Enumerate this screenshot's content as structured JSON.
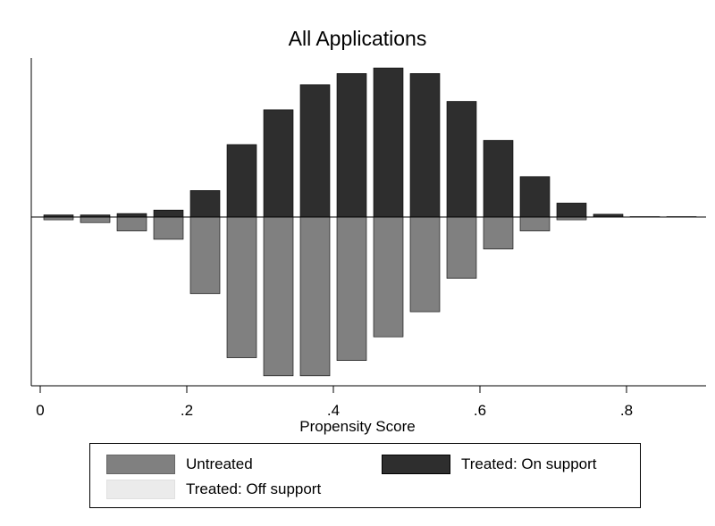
{
  "chart_data": {
    "type": "bar",
    "title": "All Applications",
    "xlabel": "Propensity Score",
    "ylabel": "",
    "xlim": [
      0,
      0.9
    ],
    "x_ticks": [
      "0",
      ".2",
      ".4",
      ".6",
      ".8"
    ],
    "x_tick_values": [
      0,
      0.2,
      0.4,
      0.6,
      0.8
    ],
    "bin_centers": [
      0.025,
      0.075,
      0.125,
      0.175,
      0.225,
      0.275,
      0.325,
      0.375,
      0.425,
      0.475,
      0.525,
      0.575,
      0.625,
      0.675,
      0.725,
      0.775,
      0.825,
      0.875
    ],
    "series": [
      {
        "name": "Treated: On support",
        "direction": "up",
        "color": "#2e2e2e",
        "values": [
          1.5,
          1.5,
          2.5,
          5,
          19,
          52,
          77,
          95,
          103,
          107,
          103,
          83,
          55,
          29,
          10,
          2,
          0.3,
          0.3
        ]
      },
      {
        "name": "Untreated",
        "direction": "down",
        "color": "#808080",
        "values": [
          2,
          4,
          10,
          16,
          55,
          101,
          114,
          114,
          103,
          86,
          68,
          44,
          23,
          10,
          2,
          0,
          0,
          0
        ]
      },
      {
        "name": "Treated: Off support",
        "direction": "up",
        "color": "#e8e8e8",
        "values": [
          0,
          0,
          0,
          0,
          0,
          0,
          0,
          0,
          0,
          0,
          0,
          0,
          0,
          0,
          0,
          0,
          0,
          0
        ]
      }
    ],
    "grid": false,
    "legend_position": "bottom"
  },
  "legend": {
    "untreated": "Untreated",
    "treated_on": "Treated: On support",
    "treated_off": "Treated: Off support"
  }
}
